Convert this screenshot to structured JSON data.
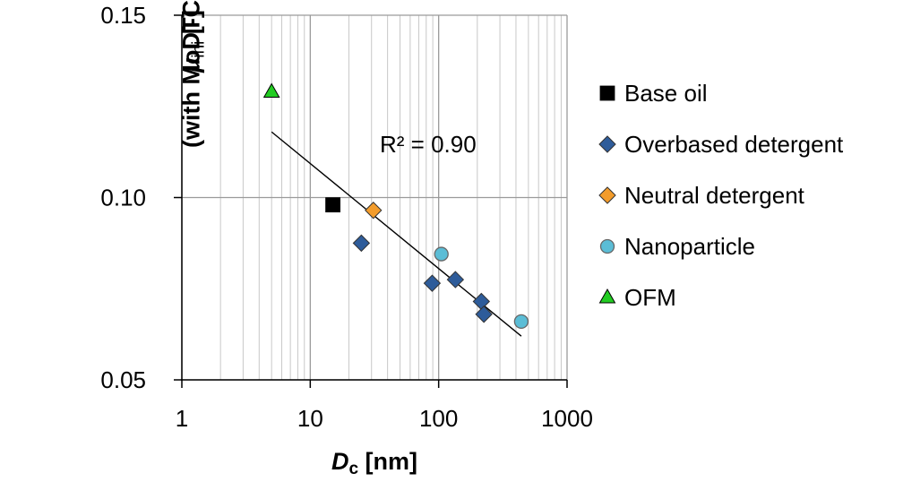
{
  "chart_data": {
    "type": "scatter",
    "title": "",
    "xlabel": {
      "main": "D",
      "sub": "c",
      "unit": "[nm]"
    },
    "ylabel": {
      "main": "μ",
      "sub": "ini",
      "unit": "[-]",
      "line2": "(with MoDTC)"
    },
    "xscale": "log",
    "xlim": [
      1,
      1000
    ],
    "ylim": [
      0.05,
      0.15
    ],
    "xticks": [
      1,
      10,
      100,
      1000
    ],
    "xtick_labels": [
      "1",
      "10",
      "100",
      "1000"
    ],
    "yticks": [
      0.05,
      0.1,
      0.15
    ],
    "ytick_labels": [
      "0.05",
      "0.10",
      "0.15"
    ],
    "grid": true,
    "legend_position": "right",
    "series": [
      {
        "name": "Base oil",
        "marker": "square",
        "color": "#000000",
        "points": [
          [
            15,
            0.098
          ]
        ]
      },
      {
        "name": "Overbased detergent",
        "marker": "diamond",
        "color": "#2e5c9a",
        "points": [
          [
            25,
            0.0875
          ],
          [
            89,
            0.0765
          ],
          [
            135,
            0.0775
          ],
          [
            215,
            0.0715
          ],
          [
            225,
            0.068
          ]
        ]
      },
      {
        "name": "Neutral detergent",
        "marker": "diamond",
        "color": "#f39c2b",
        "points": [
          [
            31,
            0.0965
          ]
        ]
      },
      {
        "name": "Nanoparticle",
        "marker": "circle",
        "color": "#5bbdd6",
        "points": [
          [
            105,
            0.0845
          ],
          [
            440,
            0.066
          ]
        ]
      },
      {
        "name": "OFM",
        "marker": "triangle",
        "color": "#22cc22",
        "points": [
          [
            5,
            0.129
          ]
        ]
      }
    ],
    "trendline": {
      "x": [
        5,
        440
      ],
      "y": [
        0.118,
        0.062
      ]
    },
    "annotations": [
      {
        "text": "R² = 0.90"
      }
    ]
  }
}
